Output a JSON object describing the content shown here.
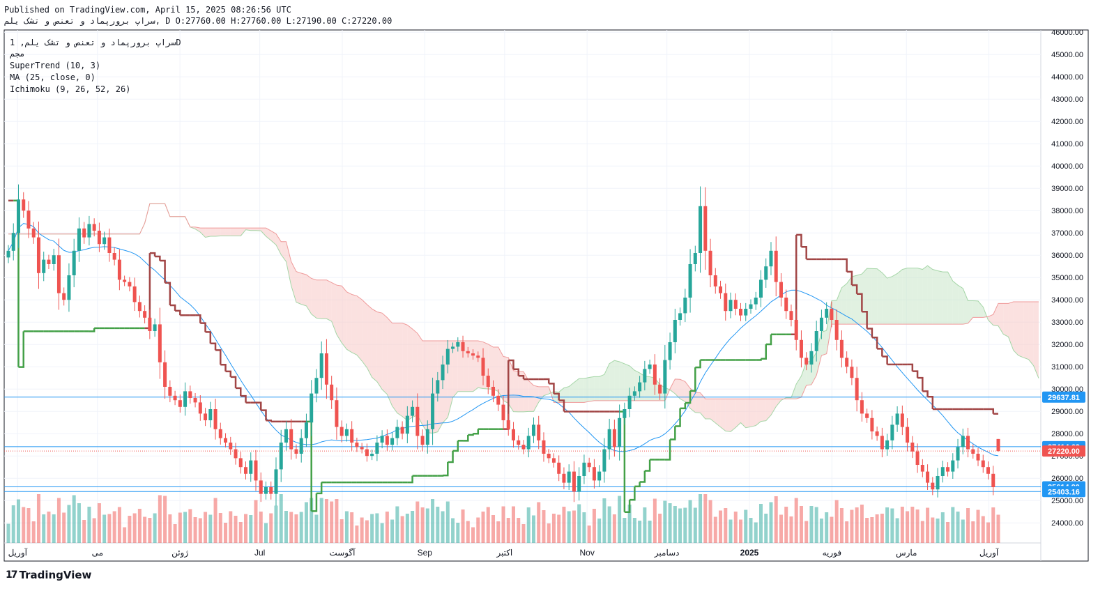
{
  "header": {
    "published": "Published on TradingView.com, April 15, 2025 08:26:56 UTC",
    "ohlc": "سراپ برورپماد و تعنص و تشک یلم, D O:27760.00 H:27760.00 L:27190.00 C:27220.00"
  },
  "legend": {
    "symbol": "سراپ برورپماد و تعنص و تشک یلم, 1D",
    "exchange": "مجم",
    "indicators": [
      "SuperTrend (10, 3)",
      "MA (25, close, 0)",
      "Ichimoku (9, 26, 52, 26)"
    ]
  },
  "brand": {
    "logo_text": "17",
    "name": "TradingView"
  },
  "colors": {
    "up": "#26a69a",
    "down": "#ef5350",
    "supertrend_up": "#43a047",
    "supertrend_down": "#a14545",
    "ma": "#2196f3",
    "cloud_bear": "#f8c9c6",
    "cloud_bull": "#c8e6c9",
    "hline": "#2196f3"
  },
  "chart_data": {
    "type": "candlestick",
    "title": "",
    "y_axis": {
      "ticks": [
        24000,
        25000,
        26000,
        27000,
        28000,
        29000,
        30000,
        31000,
        32000,
        33000,
        34000,
        35000,
        36000,
        37000,
        38000,
        39000,
        40000,
        41000,
        42000,
        43000,
        44000,
        45000,
        46000
      ],
      "tick_labels": [
        "24000.00",
        "25000.00",
        "26000.00",
        "27000.00",
        "28000.00",
        "29000.00",
        "30000.00",
        "31000.00",
        "32000.00",
        "33000.00",
        "34000.00",
        "35000.00",
        "36000.00",
        "37000.00",
        "38000.00",
        "39000.00",
        "40000.00",
        "41000.00",
        "42000.00",
        "43000.00",
        "44000.00",
        "45000.00",
        "46000.00"
      ],
      "range": [
        23100,
        46100
      ]
    },
    "x_axis": {
      "labels": [
        {
          "label": "آوریل",
          "date": "2024-04-01"
        },
        {
          "label": "می",
          "date": "2024-05-01"
        },
        {
          "label": "ژوئن",
          "date": "2024-06-01"
        },
        {
          "label": "Jul",
          "date": "2024-07-01"
        },
        {
          "label": "آگوست",
          "date": "2024-08-01"
        },
        {
          "label": "Sep",
          "date": "2024-09-01"
        },
        {
          "label": "اکتبر",
          "date": "2024-10-01"
        },
        {
          "label": "Nov",
          "date": "2024-11-01"
        },
        {
          "label": "دسامبر",
          "date": "2024-12-01"
        },
        {
          "label": "2025",
          "date": "2025-01-01"
        },
        {
          "label": "فوریه",
          "date": "2025-02-01"
        },
        {
          "label": "مارس",
          "date": "2025-03-01"
        },
        {
          "label": "آوریل",
          "date": "2025-04-01"
        }
      ]
    },
    "last_candle": {
      "date": "2025-04-15",
      "open": 27760,
      "high": 27760,
      "low": 27190,
      "close": 27220
    },
    "price_labels": [
      {
        "value": 29637.81,
        "text": "29637.81",
        "color": "#2196f3"
      },
      {
        "value": 27414.62,
        "text": "27414.62",
        "color": "#2196f3"
      },
      {
        "value": 27220.0,
        "text": "27220.00",
        "color": "#ef5350"
      },
      {
        "value": 25614.9,
        "text": "25614.90",
        "color": "#2196f3"
      },
      {
        "value": 25403.16,
        "text": "25403.16",
        "color": "#2196f3"
      }
    ],
    "horizontal_lines": [
      29637.81,
      27414.62,
      25614.9,
      25403.16
    ],
    "candles_close": [
      36200,
      37000,
      38500,
      38000,
      37200,
      36800,
      35200,
      35800,
      35600,
      36000,
      34300,
      34000,
      35100,
      36200,
      37200,
      36800,
      37400,
      37100,
      36500,
      36800,
      36100,
      35800,
      34900,
      34800,
      34600,
      33900,
      33500,
      33200,
      32600,
      32900,
      31200,
      30100,
      29700,
      29500,
      29200,
      29900,
      29600,
      29400,
      28900,
      28600,
      29100,
      28200,
      27800,
      27600,
      27300,
      26900,
      26500,
      26200,
      26800,
      25900,
      25300,
      25600,
      25300,
      26400,
      27600,
      28200,
      27300,
      27100,
      27800,
      28500,
      29800,
      30500,
      31600,
      30200,
      29500,
      28300,
      27900,
      28200,
      27600,
      27400,
      27300,
      27000,
      27100,
      27600,
      27900,
      27500,
      27800,
      28300,
      28000,
      28800,
      29200,
      27900,
      27500,
      28200,
      29800,
      30400,
      31100,
      31800,
      31900,
      32100,
      31700,
      31600,
      31500,
      31400,
      30600,
      30100,
      29700,
      29300,
      28600,
      28200,
      27700,
      27500,
      27300,
      27900,
      28400,
      27700,
      27100,
      26900,
      26700,
      26200,
      25800,
      26300,
      25400,
      26100,
      26700,
      26500,
      25900,
      26300,
      27300,
      28200,
      27400,
      28700,
      29100,
      29700,
      29900,
      30300,
      30900,
      31100,
      30200,
      29800,
      31300,
      32100,
      33100,
      33400,
      34100,
      35600,
      36100,
      38200,
      36200,
      35100,
      34600,
      34300,
      33500,
      34000,
      33600,
      33300,
      33600,
      33800,
      34100,
      34900,
      35500,
      36200,
      34800,
      34100,
      33500,
      33100,
      32200,
      31400,
      31100,
      31700,
      32600,
      33200,
      33600,
      33100,
      32200,
      31400,
      31000,
      30500,
      29500,
      28900,
      28700,
      28100,
      27900,
      27300,
      27700,
      28400,
      28900,
      28300,
      27600,
      27200,
      26600,
      26300,
      25800,
      25500,
      26100,
      26500,
      26300,
      26800,
      27400,
      27900,
      27300,
      27100,
      26800,
      26500,
      26200,
      25600,
      27220
    ]
  }
}
